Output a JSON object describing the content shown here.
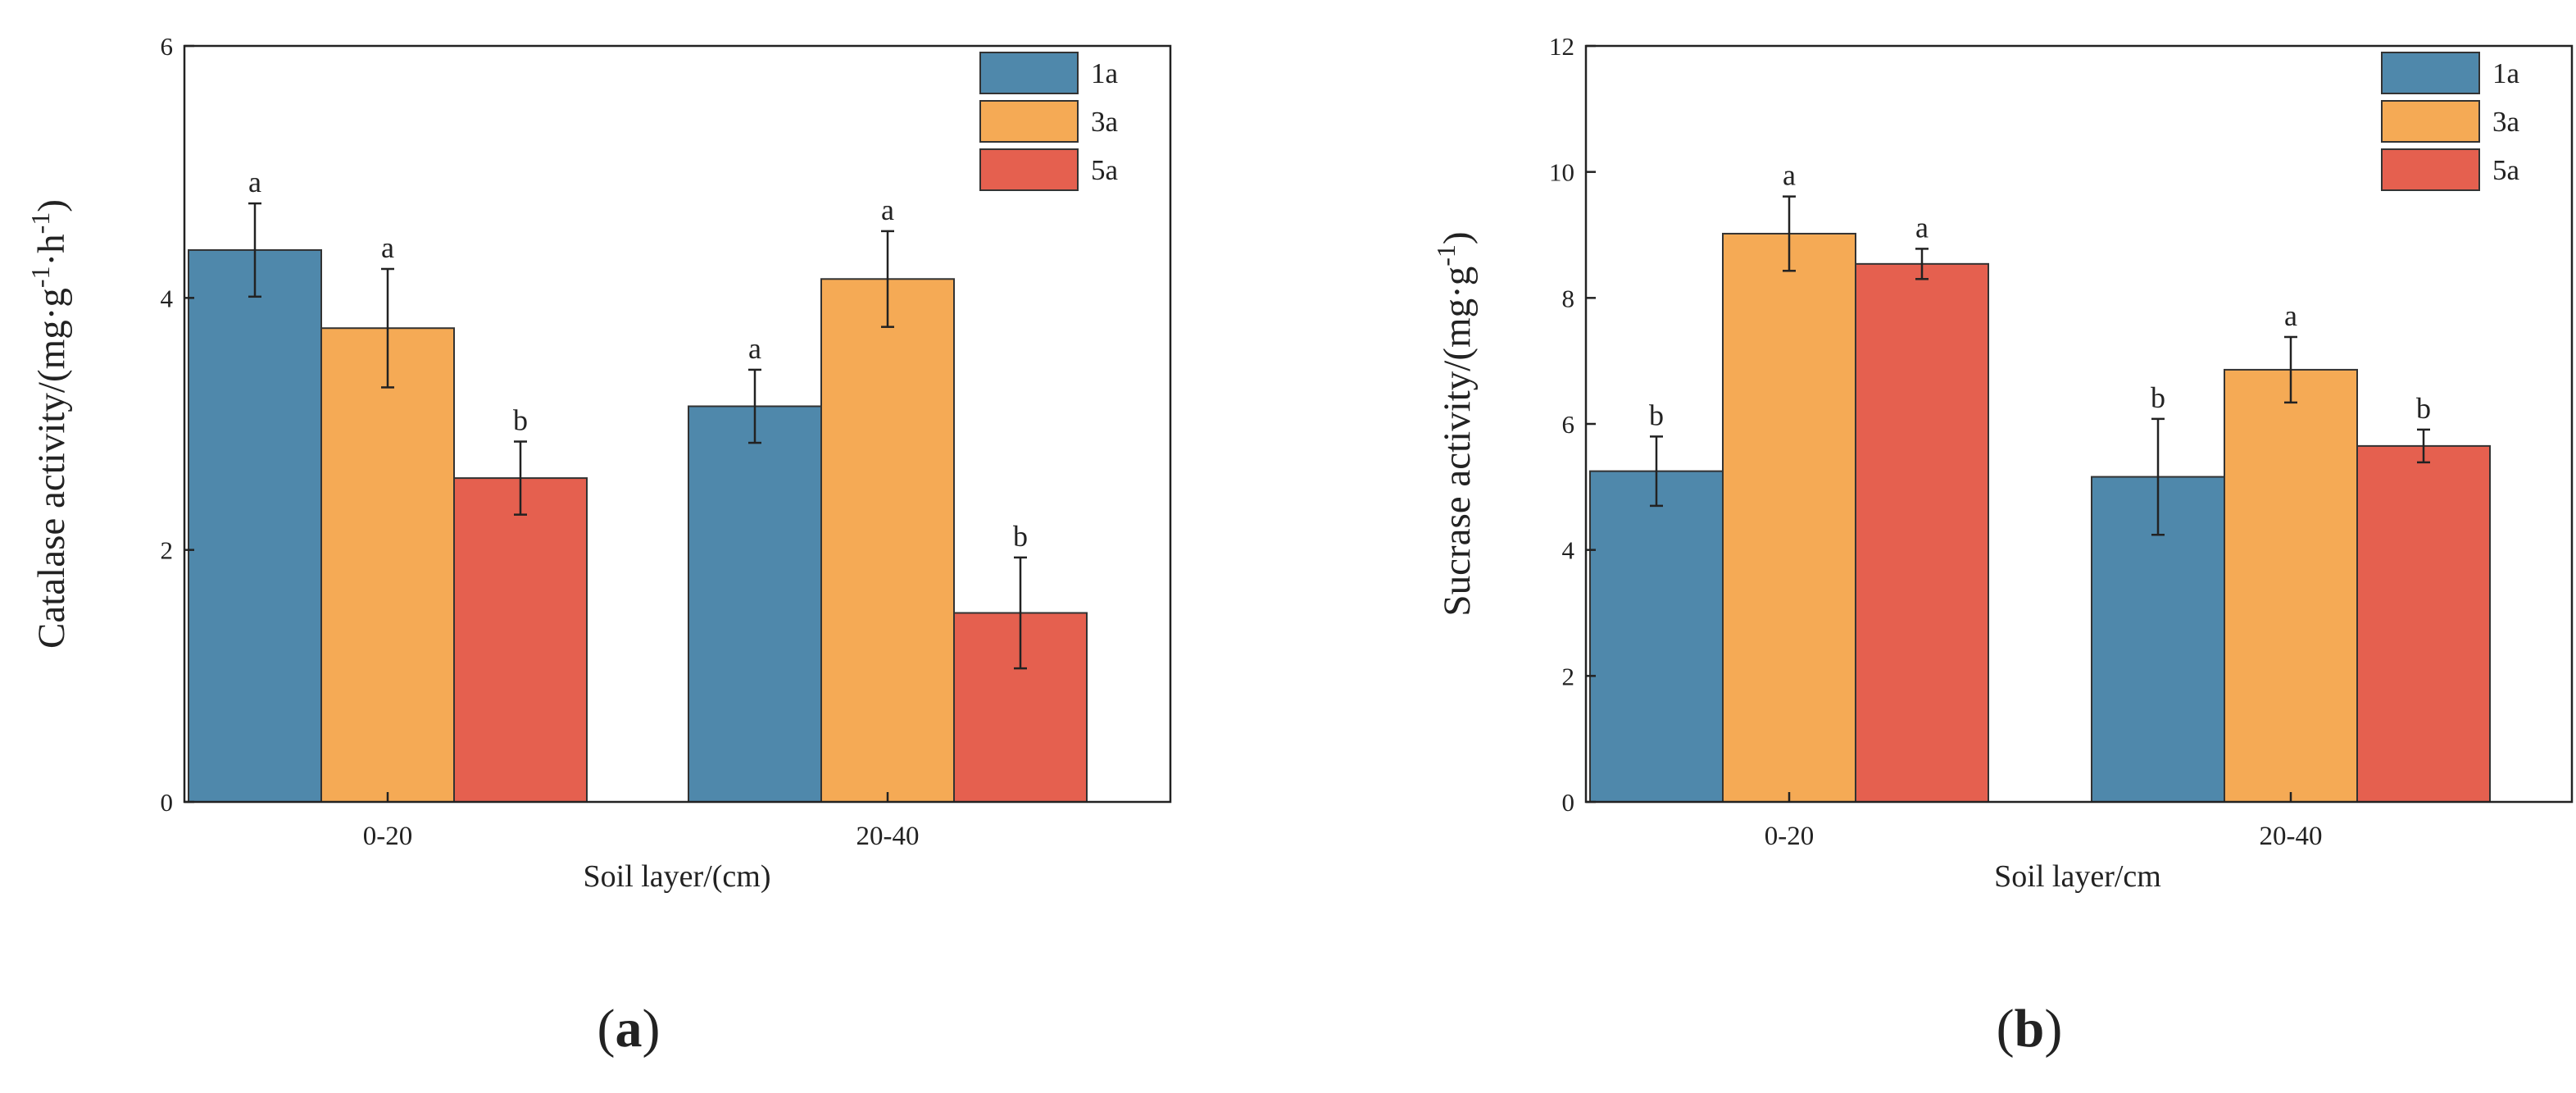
{
  "chart_data": [
    {
      "type": "bar",
      "categories": [
        "0-20",
        "20-40"
      ],
      "series": [
        {
          "name": "1a",
          "values": [
            4.38,
            3.14
          ],
          "errors": [
            0.37,
            0.29
          ],
          "letters": [
            "a",
            "a"
          ]
        },
        {
          "name": "3a",
          "values": [
            3.76,
            4.15
          ],
          "errors": [
            0.47,
            0.38
          ],
          "letters": [
            "a",
            "a"
          ]
        },
        {
          "name": "5a",
          "values": [
            2.57,
            1.5
          ],
          "errors": [
            0.29,
            0.44
          ],
          "letters": [
            "b",
            "b"
          ]
        }
      ],
      "xlabel": "Soil layer/(cm)",
      "ylabel_parts": [
        "Catalase activity/(mg·g",
        "-1",
        "·h",
        "-1",
        ")"
      ],
      "ylim": [
        0,
        6
      ],
      "yticks": [
        0,
        2,
        4,
        6
      ],
      "legend": "top-right",
      "grid": false,
      "panel_label": [
        "(",
        "a",
        ")"
      ]
    },
    {
      "type": "bar",
      "categories": [
        "0-20",
        "20-40"
      ],
      "series": [
        {
          "name": "1a",
          "values": [
            5.25,
            5.16
          ],
          "errors": [
            0.55,
            0.92
          ],
          "letters": [
            "b",
            "b"
          ]
        },
        {
          "name": "3a",
          "values": [
            9.02,
            6.86
          ],
          "errors": [
            0.59,
            0.52
          ],
          "letters": [
            "a",
            "a"
          ]
        },
        {
          "name": "5a",
          "values": [
            8.54,
            5.65
          ],
          "errors": [
            0.24,
            0.26
          ],
          "letters": [
            "a",
            "b"
          ]
        }
      ],
      "xlabel": "Soil layer/cm",
      "ylabel_parts": [
        "Sucrase activity/(mg·g",
        "-1",
        ")"
      ],
      "ylim": [
        0,
        12
      ],
      "yticks": [
        0,
        2,
        4,
        6,
        8,
        10,
        12
      ],
      "legend": "top-right",
      "grid": false,
      "panel_label": [
        "(",
        "b",
        ")"
      ]
    }
  ],
  "colors": {
    "1a": "#4f88ab",
    "3a": "#f5aa55",
    "5a": "#e5604f",
    "axis": "#222222"
  }
}
